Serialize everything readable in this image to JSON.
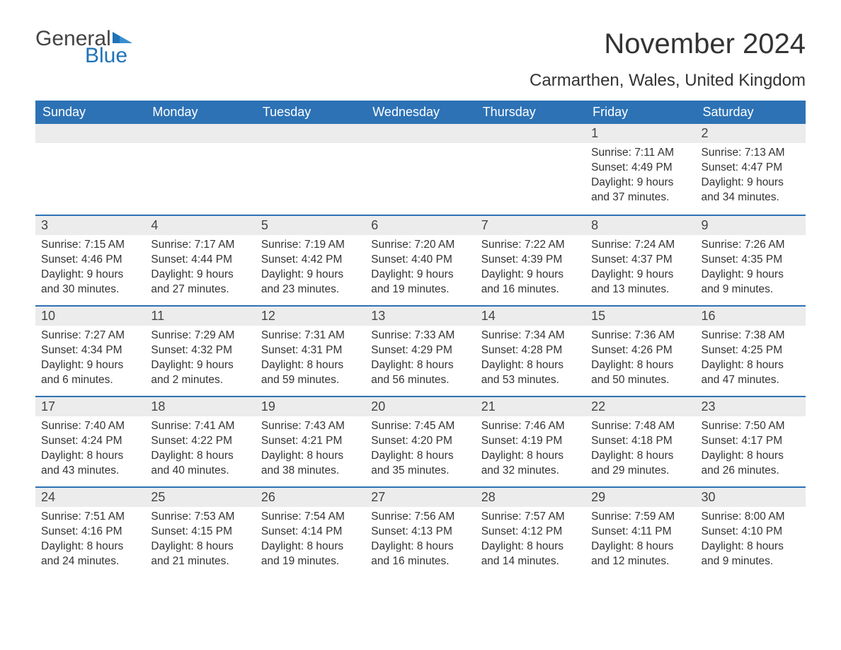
{
  "logo": {
    "general": "General",
    "blue": "Blue"
  },
  "title": "November 2024",
  "subtitle": "Carmarthen, Wales, United Kingdom",
  "colors": {
    "header_bg": "#2d72b5",
    "header_text": "#ffffff",
    "date_strip_bg": "#ececec",
    "accent_blue": "#1f73b7",
    "text": "#333333",
    "page_bg": "#ffffff"
  },
  "layout": {
    "columns": 7,
    "rows": 5
  },
  "day_names": [
    "Sunday",
    "Monday",
    "Tuesday",
    "Wednesday",
    "Thursday",
    "Friday",
    "Saturday"
  ],
  "weeks": [
    [
      {
        "date": "",
        "sunrise": "",
        "sunset": "",
        "daylight": ""
      },
      {
        "date": "",
        "sunrise": "",
        "sunset": "",
        "daylight": ""
      },
      {
        "date": "",
        "sunrise": "",
        "sunset": "",
        "daylight": ""
      },
      {
        "date": "",
        "sunrise": "",
        "sunset": "",
        "daylight": ""
      },
      {
        "date": "",
        "sunrise": "",
        "sunset": "",
        "daylight": ""
      },
      {
        "date": "1",
        "sunrise": "Sunrise: 7:11 AM",
        "sunset": "Sunset: 4:49 PM",
        "daylight": "Daylight: 9 hours and 37 minutes."
      },
      {
        "date": "2",
        "sunrise": "Sunrise: 7:13 AM",
        "sunset": "Sunset: 4:47 PM",
        "daylight": "Daylight: 9 hours and 34 minutes."
      }
    ],
    [
      {
        "date": "3",
        "sunrise": "Sunrise: 7:15 AM",
        "sunset": "Sunset: 4:46 PM",
        "daylight": "Daylight: 9 hours and 30 minutes."
      },
      {
        "date": "4",
        "sunrise": "Sunrise: 7:17 AM",
        "sunset": "Sunset: 4:44 PM",
        "daylight": "Daylight: 9 hours and 27 minutes."
      },
      {
        "date": "5",
        "sunrise": "Sunrise: 7:19 AM",
        "sunset": "Sunset: 4:42 PM",
        "daylight": "Daylight: 9 hours and 23 minutes."
      },
      {
        "date": "6",
        "sunrise": "Sunrise: 7:20 AM",
        "sunset": "Sunset: 4:40 PM",
        "daylight": "Daylight: 9 hours and 19 minutes."
      },
      {
        "date": "7",
        "sunrise": "Sunrise: 7:22 AM",
        "sunset": "Sunset: 4:39 PM",
        "daylight": "Daylight: 9 hours and 16 minutes."
      },
      {
        "date": "8",
        "sunrise": "Sunrise: 7:24 AM",
        "sunset": "Sunset: 4:37 PM",
        "daylight": "Daylight: 9 hours and 13 minutes."
      },
      {
        "date": "9",
        "sunrise": "Sunrise: 7:26 AM",
        "sunset": "Sunset: 4:35 PM",
        "daylight": "Daylight: 9 hours and 9 minutes."
      }
    ],
    [
      {
        "date": "10",
        "sunrise": "Sunrise: 7:27 AM",
        "sunset": "Sunset: 4:34 PM",
        "daylight": "Daylight: 9 hours and 6 minutes."
      },
      {
        "date": "11",
        "sunrise": "Sunrise: 7:29 AM",
        "sunset": "Sunset: 4:32 PM",
        "daylight": "Daylight: 9 hours and 2 minutes."
      },
      {
        "date": "12",
        "sunrise": "Sunrise: 7:31 AM",
        "sunset": "Sunset: 4:31 PM",
        "daylight": "Daylight: 8 hours and 59 minutes."
      },
      {
        "date": "13",
        "sunrise": "Sunrise: 7:33 AM",
        "sunset": "Sunset: 4:29 PM",
        "daylight": "Daylight: 8 hours and 56 minutes."
      },
      {
        "date": "14",
        "sunrise": "Sunrise: 7:34 AM",
        "sunset": "Sunset: 4:28 PM",
        "daylight": "Daylight: 8 hours and 53 minutes."
      },
      {
        "date": "15",
        "sunrise": "Sunrise: 7:36 AM",
        "sunset": "Sunset: 4:26 PM",
        "daylight": "Daylight: 8 hours and 50 minutes."
      },
      {
        "date": "16",
        "sunrise": "Sunrise: 7:38 AM",
        "sunset": "Sunset: 4:25 PM",
        "daylight": "Daylight: 8 hours and 47 minutes."
      }
    ],
    [
      {
        "date": "17",
        "sunrise": "Sunrise: 7:40 AM",
        "sunset": "Sunset: 4:24 PM",
        "daylight": "Daylight: 8 hours and 43 minutes."
      },
      {
        "date": "18",
        "sunrise": "Sunrise: 7:41 AM",
        "sunset": "Sunset: 4:22 PM",
        "daylight": "Daylight: 8 hours and 40 minutes."
      },
      {
        "date": "19",
        "sunrise": "Sunrise: 7:43 AM",
        "sunset": "Sunset: 4:21 PM",
        "daylight": "Daylight: 8 hours and 38 minutes."
      },
      {
        "date": "20",
        "sunrise": "Sunrise: 7:45 AM",
        "sunset": "Sunset: 4:20 PM",
        "daylight": "Daylight: 8 hours and 35 minutes."
      },
      {
        "date": "21",
        "sunrise": "Sunrise: 7:46 AM",
        "sunset": "Sunset: 4:19 PM",
        "daylight": "Daylight: 8 hours and 32 minutes."
      },
      {
        "date": "22",
        "sunrise": "Sunrise: 7:48 AM",
        "sunset": "Sunset: 4:18 PM",
        "daylight": "Daylight: 8 hours and 29 minutes."
      },
      {
        "date": "23",
        "sunrise": "Sunrise: 7:50 AM",
        "sunset": "Sunset: 4:17 PM",
        "daylight": "Daylight: 8 hours and 26 minutes."
      }
    ],
    [
      {
        "date": "24",
        "sunrise": "Sunrise: 7:51 AM",
        "sunset": "Sunset: 4:16 PM",
        "daylight": "Daylight: 8 hours and 24 minutes."
      },
      {
        "date": "25",
        "sunrise": "Sunrise: 7:53 AM",
        "sunset": "Sunset: 4:15 PM",
        "daylight": "Daylight: 8 hours and 21 minutes."
      },
      {
        "date": "26",
        "sunrise": "Sunrise: 7:54 AM",
        "sunset": "Sunset: 4:14 PM",
        "daylight": "Daylight: 8 hours and 19 minutes."
      },
      {
        "date": "27",
        "sunrise": "Sunrise: 7:56 AM",
        "sunset": "Sunset: 4:13 PM",
        "daylight": "Daylight: 8 hours and 16 minutes."
      },
      {
        "date": "28",
        "sunrise": "Sunrise: 7:57 AM",
        "sunset": "Sunset: 4:12 PM",
        "daylight": "Daylight: 8 hours and 14 minutes."
      },
      {
        "date": "29",
        "sunrise": "Sunrise: 7:59 AM",
        "sunset": "Sunset: 4:11 PM",
        "daylight": "Daylight: 8 hours and 12 minutes."
      },
      {
        "date": "30",
        "sunrise": "Sunrise: 8:00 AM",
        "sunset": "Sunset: 4:10 PM",
        "daylight": "Daylight: 8 hours and 9 minutes."
      }
    ]
  ]
}
